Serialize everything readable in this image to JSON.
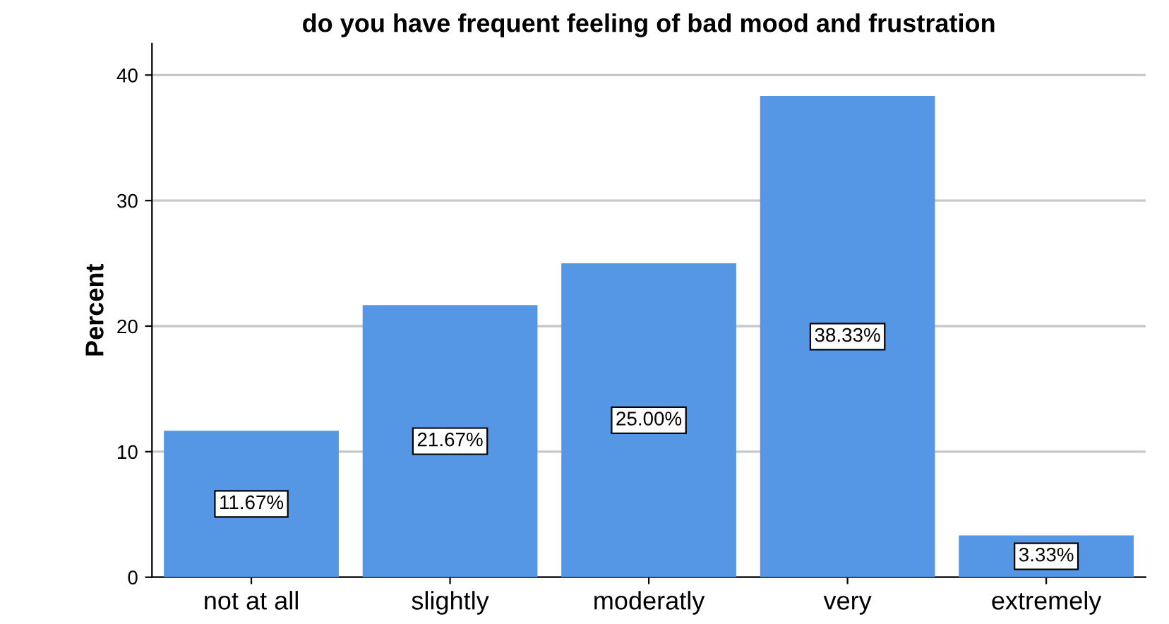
{
  "chart_data": {
    "type": "bar",
    "title": "do you have frequent feeling of bad mood and frustration",
    "ylabel": "Percent",
    "categories": [
      "not at all",
      "slightly",
      "moderatly",
      "very",
      "extremely"
    ],
    "values": [
      11.67,
      21.67,
      25.0,
      38.33,
      3.33
    ],
    "value_labels": [
      "11.67%",
      "21.67%",
      "25.00%",
      "38.33%",
      "3.33%"
    ],
    "color": "#5596e5",
    "ylim": [
      0,
      42.5
    ],
    "yticks": [
      0,
      10,
      20,
      30,
      40
    ],
    "grid": "y"
  }
}
